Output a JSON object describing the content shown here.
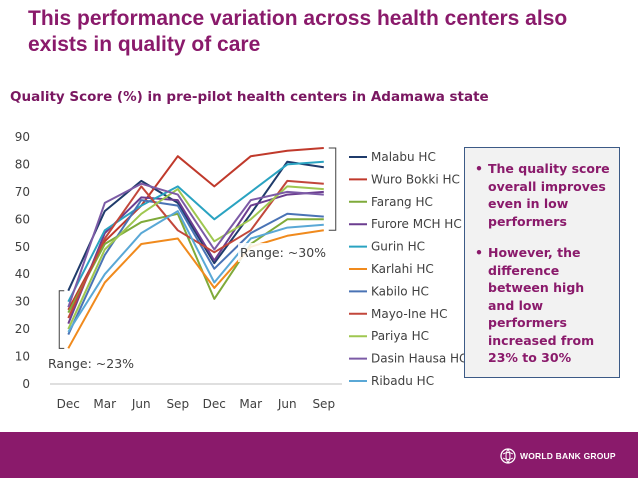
{
  "slide": {
    "title": "This performance variation across health centers also exists in quality of care"
  },
  "callout": {
    "bullets": [
      "The quality score overall improves even in low performers",
      "However, the difference between high and low performers increased from 23% to 30%"
    ]
  },
  "footer": {
    "logo_text": "WORLD BANK GROUP"
  },
  "chart_data": {
    "type": "line",
    "title": "Quality Score (%) in pre-pilot health centers in Adamawa state",
    "xlabel": "",
    "ylabel": "",
    "ylim": [
      0,
      90
    ],
    "yticks": [
      0,
      10,
      20,
      30,
      40,
      50,
      60,
      70,
      80,
      90
    ],
    "grid": false,
    "legend": "right",
    "categories": [
      "Dec",
      "Mar",
      "Jun",
      "Sep",
      "Dec",
      "Mar",
      "Jun",
      "Sep"
    ],
    "series": [
      {
        "name": "Malabu HC",
        "color": "#1f3b6b",
        "values": [
          34,
          63,
          74,
          66,
          44,
          62,
          81,
          79
        ]
      },
      {
        "name": "Wuro Bokki HC",
        "color": "#c0392b",
        "values": [
          27,
          52,
          65,
          83,
          72,
          83,
          85,
          86
        ]
      },
      {
        "name": "Farang HC",
        "color": "#7faa3a",
        "values": [
          26,
          51,
          59,
          62,
          31,
          51,
          60,
          60
        ]
      },
      {
        "name": "Furore MCH HC",
        "color": "#6b3d8f",
        "values": [
          22,
          55,
          68,
          67,
          45,
          65,
          69,
          70
        ]
      },
      {
        "name": "Gurin HC",
        "color": "#2aa3c1",
        "values": [
          30,
          56,
          65,
          72,
          60,
          70,
          80,
          81
        ]
      },
      {
        "name": "Karlahi HC",
        "color": "#f08a1d",
        "values": [
          13,
          37,
          51,
          53,
          35,
          50,
          54,
          56
        ]
      },
      {
        "name": "Kabilo HC",
        "color": "#4a73b5",
        "values": [
          18,
          47,
          67,
          65,
          42,
          55,
          62,
          61
        ]
      },
      {
        "name": "Mayo-Ine HC",
        "color": "#c2473b",
        "values": [
          24,
          53,
          72,
          56,
          48,
          56,
          74,
          73
        ]
      },
      {
        "name": "Pariya HC",
        "color": "#9fc750",
        "values": [
          20,
          49,
          62,
          71,
          52,
          60,
          72,
          71
        ]
      },
      {
        "name": "Dasin Hausa HC",
        "color": "#7c5ba6",
        "values": [
          28,
          66,
          73,
          69,
          49,
          67,
          70,
          69
        ]
      },
      {
        "name": "Ribadu HC",
        "color": "#5aa8d6",
        "values": [
          19,
          40,
          55,
          63,
          37,
          53,
          57,
          58
        ]
      }
    ],
    "annotations": [
      {
        "text": "Range: ~23%"
      },
      {
        "text": "Range: ~30%"
      }
    ]
  }
}
